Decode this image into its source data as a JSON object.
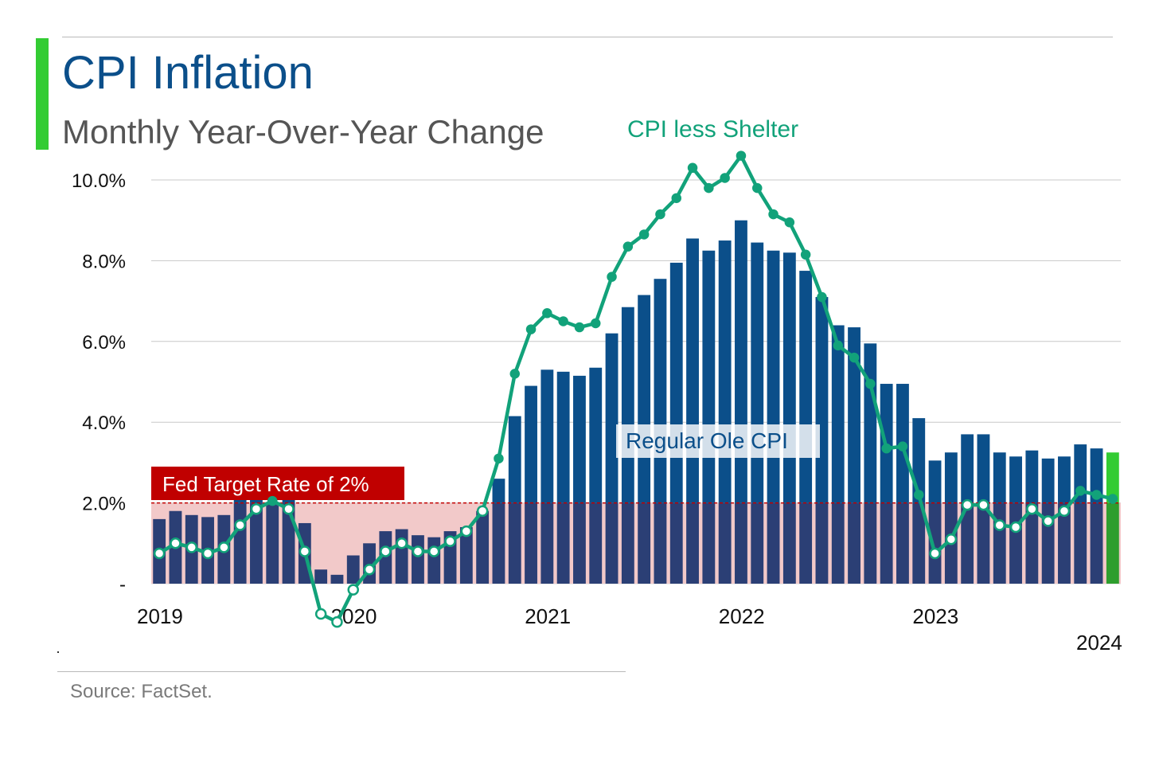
{
  "header": {
    "title": "CPI Inflation",
    "subtitle": "Monthly Year-Over-Year Change"
  },
  "footer": {
    "source": "Source: FactSet."
  },
  "colors": {
    "accent": "#33cc33",
    "title": "#0b4f8a",
    "bars": "#0b4f8a",
    "bars_below_target": "#2b3f75",
    "last_bar": "#33cc33",
    "line": "#12a27a",
    "target_band": "#f2c9c9",
    "target_label_bg": "#c00000"
  },
  "chart_data": {
    "type": "bar",
    "title": "CPI Inflation",
    "subtitle": "Monthly Year-Over-Year Change",
    "y_tick_labels": [
      "-",
      "2.0%",
      "4.0%",
      "6.0%",
      "8.0%",
      "10.0%"
    ],
    "y_ticks": [
      0,
      2,
      4,
      6,
      8,
      10
    ],
    "ylim": [
      0,
      10
    ],
    "x_tick_labels": [
      "2019",
      "2020",
      "2021",
      "2022",
      "2023",
      "2024"
    ],
    "grid": true,
    "target_line": {
      "value": 2.0,
      "label": "Fed Target Rate of 2%"
    },
    "series": [
      {
        "name": "Regular Ole CPI",
        "type": "bar",
        "values": [
          1.6,
          1.8,
          1.7,
          1.65,
          1.7,
          2.1,
          2.2,
          2.0,
          2.15,
          1.5,
          0.35,
          0.22,
          0.7,
          1.0,
          1.3,
          1.35,
          1.2,
          1.15,
          1.3,
          1.4,
          1.8,
          2.6,
          4.15,
          4.9,
          5.3,
          5.25,
          5.15,
          5.35,
          6.2,
          6.85,
          7.15,
          7.55,
          7.95,
          8.55,
          8.25,
          8.5,
          9.0,
          8.45,
          8.25,
          8.2,
          7.75,
          7.1,
          6.4,
          6.35,
          5.95,
          4.95,
          4.95,
          4.1,
          3.05,
          3.25,
          3.7,
          3.7,
          3.25,
          3.15,
          3.3,
          3.1,
          3.15,
          3.45,
          3.35,
          3.25
        ]
      },
      {
        "name": "CPI less Shelter",
        "type": "line",
        "values": [
          0.75,
          1.0,
          0.9,
          0.75,
          0.9,
          1.45,
          1.85,
          2.05,
          1.85,
          0.8,
          -0.75,
          -0.95,
          -0.15,
          0.35,
          0.8,
          1.0,
          0.8,
          0.8,
          1.05,
          1.3,
          1.8,
          3.1,
          5.2,
          6.3,
          6.7,
          6.5,
          6.35,
          6.45,
          7.6,
          8.35,
          8.65,
          9.15,
          9.55,
          10.3,
          9.8,
          10.05,
          10.6,
          9.8,
          9.15,
          8.95,
          8.15,
          7.1,
          5.9,
          5.6,
          4.95,
          3.35,
          3.4,
          2.2,
          0.75,
          1.1,
          1.95,
          1.95,
          1.45,
          1.4,
          1.85,
          1.55,
          1.8,
          2.3,
          2.2,
          2.1
        ]
      }
    ]
  }
}
